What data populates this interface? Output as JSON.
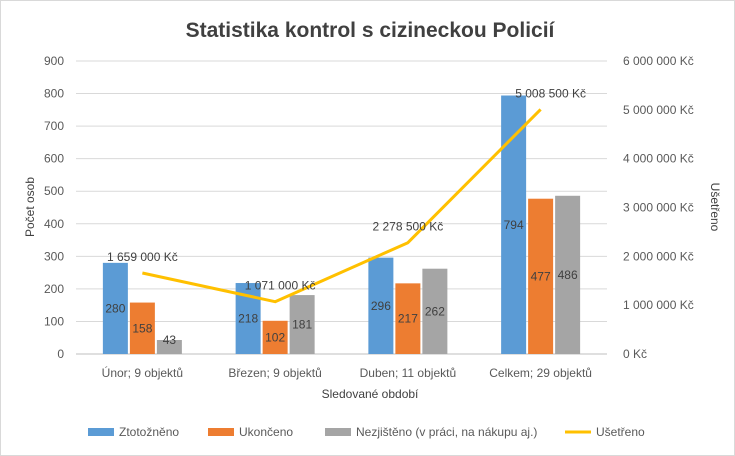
{
  "chart_data": {
    "type": "bar",
    "title": "Statistika kontrol s cizineckou Policií",
    "xlabel": "Sledované období",
    "ylabel": "Počet osob",
    "y2label": "Ušetřeno",
    "categories": [
      "Únor; 9 objektů",
      "Březen; 9 objektů",
      "Duben; 11 objektů",
      "Celkem; 29 objektů"
    ],
    "ylim": [
      0,
      900
    ],
    "y_ticks": [
      "0",
      "100",
      "200",
      "300",
      "400",
      "500",
      "600",
      "700",
      "800",
      "900"
    ],
    "y2lim": [
      0,
      6000000
    ],
    "y2_ticks": [
      "0 Kč",
      "1 000 000 Kč",
      "2 000 000 Kč",
      "3 000 000 Kč",
      "4 000 000 Kč",
      "5 000 000 Kč",
      "6 000 000 Kč"
    ],
    "series": [
      {
        "name": "Ztotožněno",
        "type": "bar",
        "color": "#5b9bd5",
        "values": [
          280,
          218,
          296,
          794
        ],
        "labels": [
          "280",
          "218",
          "296",
          "794"
        ]
      },
      {
        "name": "Ukončeno",
        "type": "bar",
        "color": "#ed7d31",
        "values": [
          158,
          102,
          217,
          477
        ],
        "labels": [
          "158",
          "102",
          "217",
          "477"
        ]
      },
      {
        "name": "Nezjištěno (v práci, na nákupu aj.)",
        "type": "bar",
        "color": "#a5a5a5",
        "values": [
          43,
          181,
          262,
          486
        ],
        "labels": [
          "43",
          "181",
          "262",
          "486"
        ]
      },
      {
        "name": "Ušetřeno",
        "type": "line",
        "axis": "right",
        "color": "#ffc000",
        "values": [
          1659000,
          1071000,
          2278500,
          5008500
        ],
        "labels": [
          "1 659 000 Kč",
          "1 071 000 Kč",
          "2 278 500 Kč",
          "5 008 500 Kč"
        ]
      }
    ],
    "grid": true,
    "legend": "bottom"
  }
}
